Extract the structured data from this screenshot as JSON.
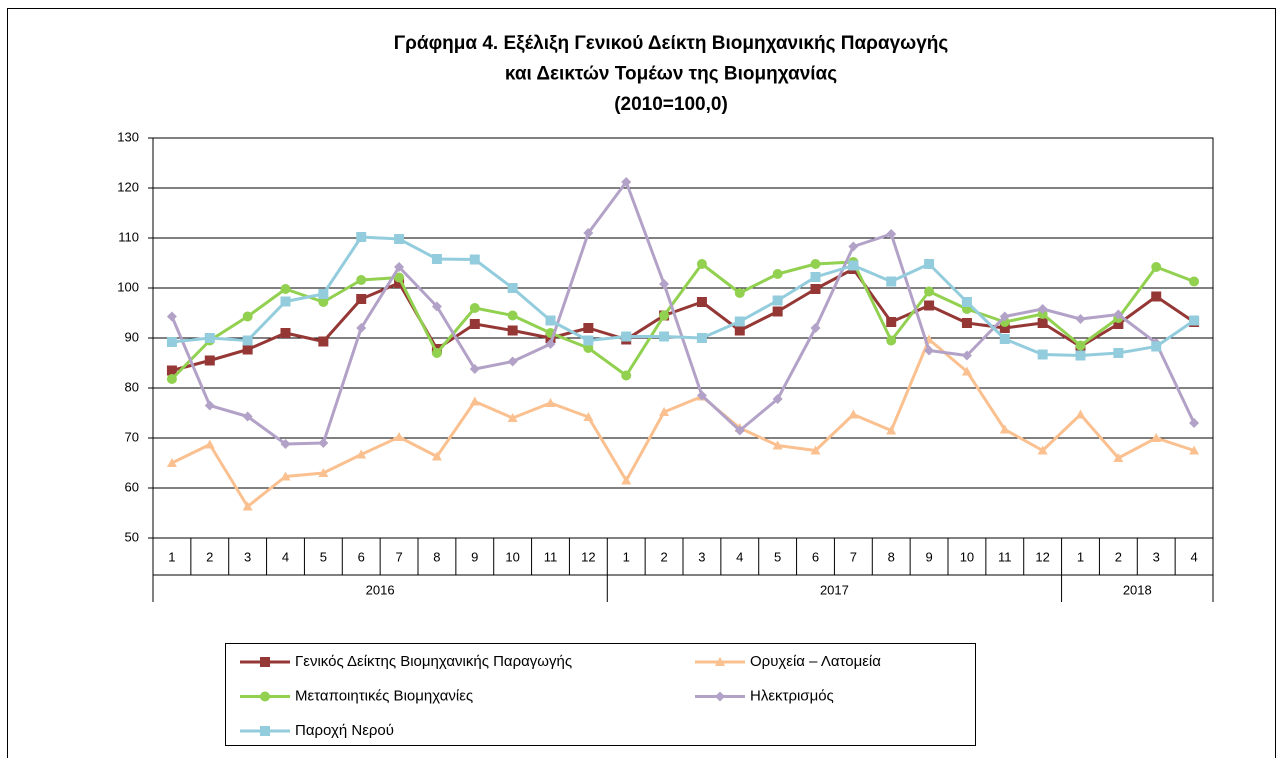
{
  "chart_data": {
    "type": "line",
    "title": [
      "Γράφημα 4. Εξέλιξη Γενικού Δείκτη Βιομηχανικής Παραγωγής",
      "και Δεικτών Τομέων της Βιομηχανίας",
      "(2010=100,0)"
    ],
    "category_groups": [
      {
        "name": "2016",
        "categories": [
          "1",
          "2",
          "3",
          "4",
          "5",
          "6",
          "7",
          "8",
          "9",
          "10",
          "11",
          "12"
        ]
      },
      {
        "name": "2017",
        "categories": [
          "1",
          "2",
          "3",
          "4",
          "5",
          "6",
          "7",
          "8",
          "9",
          "10",
          "11",
          "12"
        ]
      },
      {
        "name": "2018",
        "categories": [
          "1",
          "2",
          "3",
          "4"
        ]
      }
    ],
    "ylim": [
      50,
      130
    ],
    "yticks": [
      50,
      60,
      70,
      80,
      90,
      100,
      110,
      120,
      130
    ],
    "grid": true,
    "series": [
      {
        "name": "Γενικός Δείκτης Βιομηχανικής Παραγωγής",
        "color": "#953735",
        "marker": "square",
        "values": [
          83.5,
          85.5,
          87.7,
          91.0,
          89.3,
          97.8,
          101.0,
          87.8,
          92.8,
          91.5,
          90.0,
          92.0,
          89.7,
          94.5,
          97.2,
          91.5,
          95.3,
          99.8,
          103.8,
          93.2,
          96.5,
          93.0,
          92.0,
          93.0,
          88.3,
          92.8,
          98.3,
          93.2
        ]
      },
      {
        "name": "Ορυχεία – Λατομεία",
        "color": "#FAC08F",
        "marker": "triangle",
        "values": [
          65.0,
          68.7,
          56.3,
          62.3,
          63.0,
          66.7,
          70.2,
          66.3,
          77.3,
          74.0,
          77.0,
          74.2,
          61.5,
          75.2,
          78.3,
          72.0,
          68.5,
          67.5,
          74.7,
          71.5,
          89.7,
          83.3,
          71.7,
          67.5,
          74.7,
          66.0,
          70.0,
          67.5
        ]
      },
      {
        "name": "Μεταποιητικές Βιομηχανίες",
        "color": "#92D050",
        "marker": "circle",
        "values": [
          81.8,
          89.5,
          94.3,
          99.8,
          97.2,
          101.6,
          102.1,
          87.0,
          96.0,
          94.5,
          91.0,
          88.0,
          82.5,
          94.5,
          104.8,
          99.0,
          102.8,
          104.8,
          105.2,
          89.5,
          99.3,
          95.8,
          93.2,
          94.8,
          88.5,
          94.0,
          104.2,
          101.3
        ]
      },
      {
        "name": "Ηλεκτρισμός",
        "color": "#B3A2C7",
        "marker": "diamond",
        "values": [
          94.3,
          76.5,
          74.3,
          68.8,
          69.0,
          92.0,
          104.2,
          96.3,
          83.8,
          85.3,
          88.8,
          111.0,
          121.2,
          100.8,
          78.5,
          71.5,
          77.8,
          92.0,
          108.3,
          110.8,
          87.5,
          86.5,
          94.3,
          95.8,
          93.8,
          94.7,
          89.0,
          73.0
        ]
      },
      {
        "name": "Παροχή Νερού",
        "color": "#93CDDD",
        "marker": "square",
        "values": [
          89.2,
          90.0,
          89.5,
          97.3,
          98.8,
          110.2,
          109.8,
          105.8,
          105.7,
          100.0,
          93.5,
          89.5,
          90.3,
          90.3,
          90.0,
          93.3,
          97.5,
          102.2,
          104.5,
          101.3,
          104.8,
          97.2,
          89.8,
          86.7,
          86.5,
          87.0,
          88.3,
          93.5
        ]
      }
    ]
  }
}
